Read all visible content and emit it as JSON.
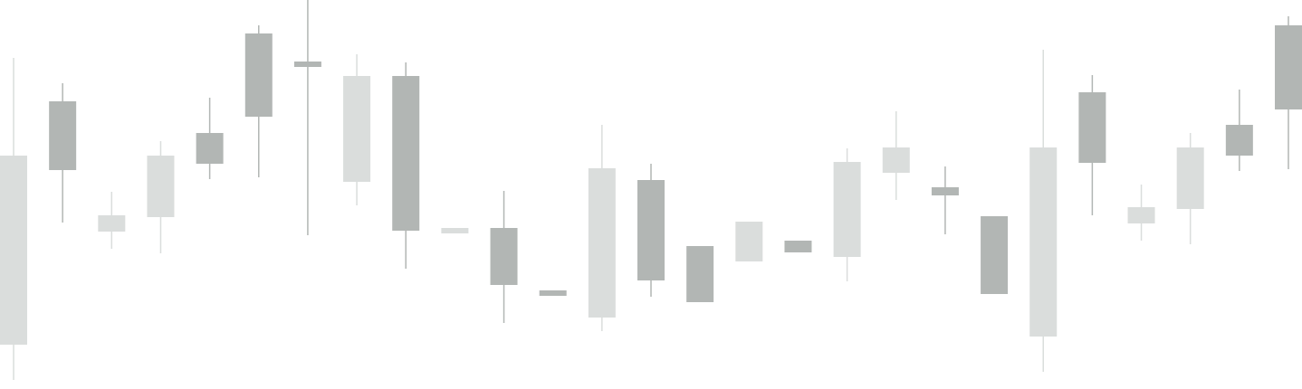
{
  "chart_data": {
    "type": "candlestick",
    "open": [
      258,
      242,
      192,
      258,
      249,
      301,
      356,
      346,
      175,
      178,
      115,
      103,
      244,
      120,
      96,
      185,
      151,
      251,
      267,
      214,
      105,
      267,
      250,
      201,
      267,
      258,
      309
    ],
    "high": [
      366,
      338,
      218,
      274,
      322,
      402,
      430,
      370,
      361,
      178,
      219,
      109,
      292,
      249,
      158,
      185,
      164,
      266,
      307,
      246,
      191,
      375,
      347,
      226,
      283,
      331,
      412
    ],
    "low": [
      10,
      184,
      155,
      150,
      232,
      234,
      170,
      203,
      133,
      172,
      73,
      103,
      64,
      102,
      96,
      141,
      151,
      119,
      209,
      171,
      105,
      19,
      192,
      164,
      160,
      241,
      243
    ],
    "close": [
      49,
      318,
      174,
      190,
      283,
      393,
      362,
      229,
      346,
      172,
      178,
      109,
      79,
      231,
      158,
      141,
      164,
      146,
      239,
      223,
      191,
      58,
      328,
      183,
      199,
      292,
      402
    ],
    "up_color": "#b2b6b4",
    "down_color": "#dadddc",
    "ylim": [
      0,
      430
    ]
  }
}
